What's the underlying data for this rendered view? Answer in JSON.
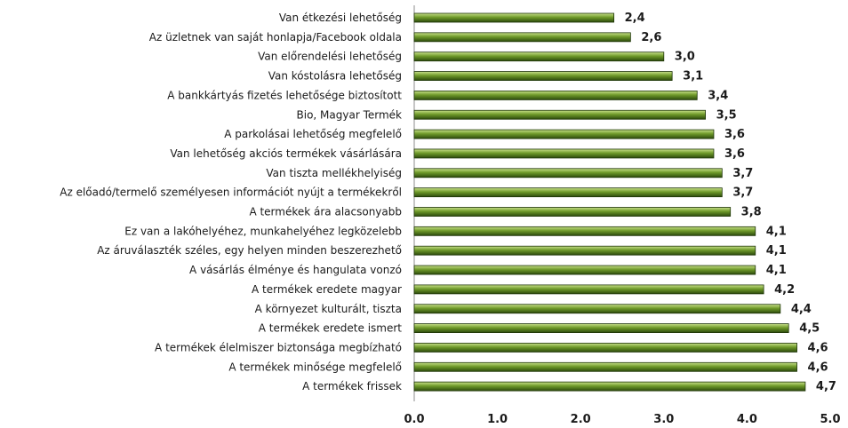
{
  "chart_data": {
    "type": "bar",
    "orientation": "horizontal",
    "categories": [
      "Van étkezési lehetőség",
      "Az üzletnek van saját honlapja/Facebook oldala",
      "Van előrendelési lehetőség",
      "Van kóstolásra lehetőség",
      "A bankkártyás fizetés lehetősége biztosított",
      "Bio, Magyar Termék",
      "A parkolásai lehetőség megfelelő",
      "Van lehetőség akciós termékek vásárlására",
      "Van tiszta mellékhelyiség",
      "Az előadó/termelő személyesen információt nyújt a termékekről",
      "A termékek ára alacsonyabb",
      "Ez van a lakóhelyéhez, munkahelyéhez legközelebb",
      "Az áruválaszték széles, egy helyen minden beszerezhető",
      "A vásárlás élménye és hangulata vonzó",
      "A termékek eredete magyar",
      "A környezet kulturált, tiszta",
      "A termékek eredete ismert",
      "A termékek élelmiszer biztonsága megbízható",
      "A termékek minősége megfelelő",
      "A termékek frissek"
    ],
    "values": [
      2.4,
      2.6,
      3.0,
      3.1,
      3.4,
      3.5,
      3.6,
      3.6,
      3.7,
      3.7,
      3.8,
      4.1,
      4.1,
      4.1,
      4.2,
      4.4,
      4.5,
      4.6,
      4.6,
      4.7
    ],
    "value_labels": [
      "2,4",
      "2,6",
      "3,0",
      "3,1",
      "3,4",
      "3,5",
      "3,6",
      "3,6",
      "3,7",
      "3,7",
      "3,8",
      "4,1",
      "4,1",
      "4,1",
      "4,2",
      "4,4",
      "4,5",
      "4,6",
      "4,6",
      "4,7"
    ],
    "xlim": [
      0,
      5
    ],
    "x_ticks": [
      0,
      1,
      2,
      3,
      4,
      5
    ],
    "x_tick_labels": [
      "0.0",
      "1.0",
      "2.0",
      "3.0",
      "4.0",
      "5.0"
    ],
    "title": "",
    "xlabel": "",
    "ylabel": "",
    "grid": false,
    "legend": "none",
    "colors": {
      "bar_top": "#c8e08a",
      "bar_mid": "#6f9a2a",
      "bar_bottom": "#2c4a0c",
      "bar_edge": "#1e3508",
      "axis": "#8c8c8c",
      "text": "#1a1a1a"
    }
  }
}
